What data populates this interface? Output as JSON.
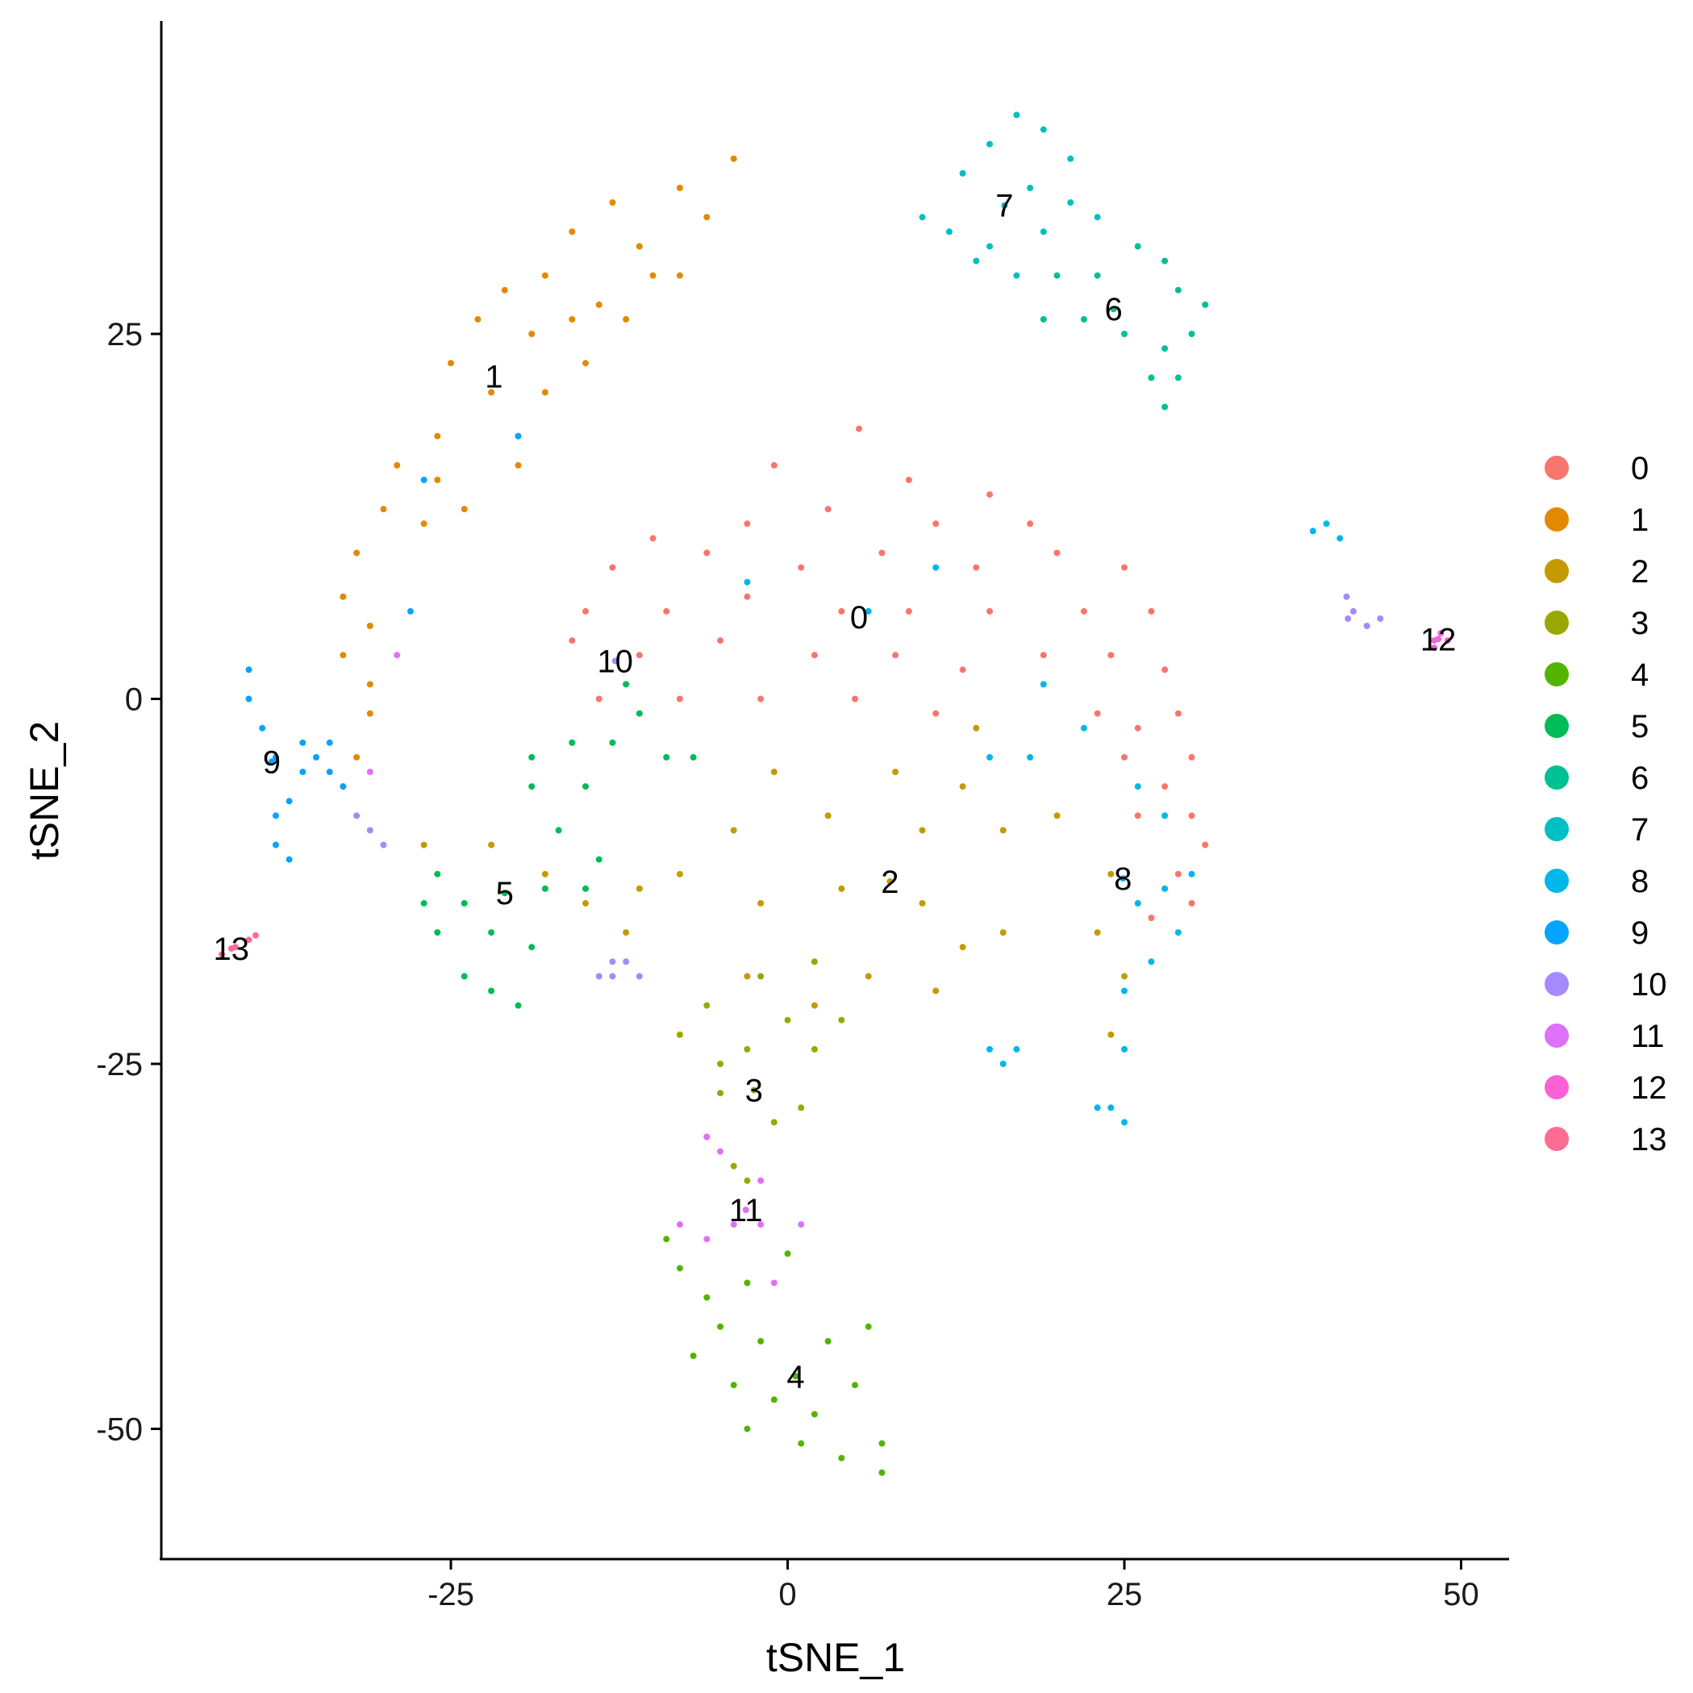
{
  "chart_data": {
    "type": "scatter",
    "title": "",
    "xlabel": "tSNE_1",
    "ylabel": "tSNE_2",
    "xlim": [
      -46,
      53
    ],
    "ylim": [
      -59,
      47
    ],
    "x_ticks": [
      -25,
      0,
      25,
      50
    ],
    "y_ticks": [
      25,
      0,
      -25,
      -50
    ],
    "x_tick_labels": [
      "-25",
      "0",
      "25",
      "50"
    ],
    "y_tick_labels": [
      "25",
      "0",
      "-25",
      "-50"
    ],
    "grid": false,
    "legend_position": "right",
    "series": [
      {
        "name": "0",
        "color": "#F8766D",
        "label_pos": [
          5.3,
          5.6
        ],
        "points": [
          [
            5.3,
            18.5
          ],
          [
            -1,
            16
          ],
          [
            9,
            15
          ],
          [
            15,
            14
          ],
          [
            -10,
            11
          ],
          [
            -3,
            12
          ],
          [
            3,
            13
          ],
          [
            11,
            12
          ],
          [
            18,
            12
          ],
          [
            -13,
            9
          ],
          [
            -6,
            10
          ],
          [
            1,
            9
          ],
          [
            7,
            10
          ],
          [
            14,
            9
          ],
          [
            20,
            10
          ],
          [
            25,
            9
          ],
          [
            -15,
            6
          ],
          [
            -9,
            6
          ],
          [
            -3,
            7
          ],
          [
            4,
            6
          ],
          [
            9,
            6
          ],
          [
            15,
            6
          ],
          [
            22,
            6
          ],
          [
            27,
            6
          ],
          [
            -16,
            4
          ],
          [
            -11,
            3
          ],
          [
            -5,
            4
          ],
          [
            2,
            3
          ],
          [
            8,
            3
          ],
          [
            13,
            2
          ],
          [
            19,
            3
          ],
          [
            24,
            3
          ],
          [
            28,
            2
          ],
          [
            -14,
            0
          ],
          [
            -8,
            0
          ],
          [
            -2,
            0
          ],
          [
            5,
            0
          ],
          [
            11,
            -1
          ],
          [
            23,
            -1
          ],
          [
            26,
            -2
          ],
          [
            29,
            -1
          ],
          [
            30,
            -4
          ],
          [
            28,
            -6
          ],
          [
            30,
            -8
          ],
          [
            31,
            -10
          ],
          [
            29,
            -12
          ],
          [
            26,
            -8
          ],
          [
            25,
            -4
          ],
          [
            30,
            -14
          ],
          [
            27,
            -15
          ]
        ]
      },
      {
        "name": "1",
        "color": "#E38900",
        "label_pos": [
          -21.8,
          22.1
        ],
        "points": [
          [
            -4,
            37
          ],
          [
            -8,
            35
          ],
          [
            -13,
            34
          ],
          [
            -16,
            32
          ],
          [
            -11,
            31
          ],
          [
            -6,
            33
          ],
          [
            -18,
            29
          ],
          [
            -14,
            27
          ],
          [
            -10,
            29
          ],
          [
            -21,
            28
          ],
          [
            -23,
            26
          ],
          [
            -19,
            25
          ],
          [
            -15,
            23
          ],
          [
            -25,
            23
          ],
          [
            -22,
            21
          ],
          [
            -18,
            21
          ],
          [
            -20,
            18
          ],
          [
            -26,
            18
          ],
          [
            -29,
            16
          ],
          [
            -26,
            15
          ],
          [
            -30,
            13
          ],
          [
            -27,
            12
          ],
          [
            -32,
            10
          ],
          [
            -33,
            7
          ],
          [
            -31,
            5
          ],
          [
            -33,
            3
          ],
          [
            -31,
            1
          ],
          [
            -31,
            -1
          ],
          [
            -32,
            -4
          ],
          [
            -33,
            -6
          ],
          [
            -12,
            26
          ],
          [
            -8,
            29
          ],
          [
            -16,
            26
          ],
          [
            -20,
            16
          ],
          [
            -24,
            13
          ]
        ]
      },
      {
        "name": "2",
        "color": "#C49A00",
        "label_pos": [
          7.6,
          -12.5
        ],
        "points": [
          [
            7.6,
            -12.5
          ],
          [
            3,
            -8
          ],
          [
            10,
            -9
          ],
          [
            13,
            -6
          ],
          [
            16,
            -9
          ],
          [
            20,
            -8
          ],
          [
            24,
            -12
          ],
          [
            23,
            -16
          ],
          [
            25,
            -19
          ],
          [
            24,
            -23
          ],
          [
            -1,
            -5
          ],
          [
            -4,
            -9
          ],
          [
            -8,
            -12
          ],
          [
            -11,
            -13
          ],
          [
            -2,
            -14
          ],
          [
            4,
            -13
          ],
          [
            10,
            -14
          ],
          [
            13,
            -17
          ],
          [
            16,
            -16
          ],
          [
            11,
            -20
          ],
          [
            -15,
            -14
          ],
          [
            -3,
            -19
          ],
          [
            2,
            -21
          ],
          [
            6,
            -19
          ],
          [
            14,
            -2
          ],
          [
            8,
            -5
          ],
          [
            -18,
            -12
          ],
          [
            -22,
            -10
          ],
          [
            -27,
            -10
          ],
          [
            -12,
            -16
          ]
        ]
      },
      {
        "name": "3",
        "color": "#99A800",
        "label_pos": [
          -2.5,
          -26.8
        ],
        "points": [
          [
            -2.5,
            -26.8
          ],
          [
            -6,
            -21
          ],
          [
            -3,
            -24
          ],
          [
            0,
            -22
          ],
          [
            2,
            -24
          ],
          [
            -5,
            -27
          ],
          [
            -1,
            -29
          ],
          [
            -6,
            -30
          ],
          [
            -4,
            -32
          ],
          [
            -3,
            -33
          ],
          [
            1,
            -28
          ],
          [
            -8,
            -23
          ],
          [
            -2,
            -19
          ],
          [
            2,
            -18
          ],
          [
            4,
            -22
          ],
          [
            -5,
            -25
          ]
        ]
      },
      {
        "name": "4",
        "color": "#53B400",
        "label_pos": [
          0.6,
          -46.4
        ],
        "points": [
          [
            0.6,
            -46.4
          ],
          [
            -8,
            -39
          ],
          [
            -6,
            -41
          ],
          [
            -3,
            -40
          ],
          [
            0,
            -38
          ],
          [
            -5,
            -43
          ],
          [
            -2,
            -44
          ],
          [
            3,
            -44
          ],
          [
            -4,
            -47
          ],
          [
            -1,
            -48
          ],
          [
            2,
            -49
          ],
          [
            5,
            -47
          ],
          [
            -3,
            -50
          ],
          [
            1,
            -51
          ],
          [
            4,
            -52
          ],
          [
            7,
            -53
          ],
          [
            -9,
            -37
          ],
          [
            -7,
            -45
          ],
          [
            6,
            -43
          ],
          [
            7,
            -51
          ]
        ]
      },
      {
        "name": "5",
        "color": "#00BC56",
        "label_pos": [
          -21,
          -13.3
        ],
        "points": [
          [
            -21,
            -13.3
          ],
          [
            -26,
            -12
          ],
          [
            -24,
            -14
          ],
          [
            -22,
            -16
          ],
          [
            -26,
            -16
          ],
          [
            -24,
            -19
          ],
          [
            -22,
            -20
          ],
          [
            -20,
            -21
          ],
          [
            -19,
            -17
          ],
          [
            -18,
            -13
          ],
          [
            -15,
            -13
          ],
          [
            -14,
            -11
          ],
          [
            -17,
            -9
          ],
          [
            -19,
            -6
          ],
          [
            -15,
            -6
          ],
          [
            -16,
            -3
          ],
          [
            -13,
            -3
          ],
          [
            -11,
            -1
          ],
          [
            -12,
            1
          ],
          [
            -19,
            -4
          ],
          [
            -9,
            -4
          ],
          [
            -7,
            -4
          ],
          [
            -27,
            -14
          ]
        ]
      },
      {
        "name": "6",
        "color": "#00C094",
        "label_pos": [
          24.2,
          26.7
        ],
        "points": [
          [
            24.2,
            26.7
          ],
          [
            20,
            29
          ],
          [
            23,
            29
          ],
          [
            26,
            31
          ],
          [
            28,
            30
          ],
          [
            29,
            28
          ],
          [
            31,
            27
          ],
          [
            30,
            25
          ],
          [
            28,
            24
          ],
          [
            27,
            22
          ],
          [
            29,
            22
          ],
          [
            28,
            20
          ],
          [
            25,
            25
          ],
          [
            22,
            26
          ],
          [
            19,
            26
          ]
        ]
      },
      {
        "name": "7",
        "color": "#00BFC4",
        "label_pos": [
          16.1,
          33.8
        ],
        "points": [
          [
            16.1,
            33.8
          ],
          [
            17,
            40
          ],
          [
            19,
            39
          ],
          [
            15,
            38
          ],
          [
            13,
            36
          ],
          [
            18,
            35
          ],
          [
            21,
            37
          ],
          [
            10,
            33
          ],
          [
            12,
            32
          ],
          [
            15,
            31
          ],
          [
            19,
            32
          ],
          [
            21,
            34
          ],
          [
            23,
            33
          ],
          [
            14,
            30
          ],
          [
            17,
            29
          ]
        ]
      },
      {
        "name": "8",
        "color": "#00B6EB",
        "label_pos": [
          24.9,
          -12.3
        ],
        "points": [
          [
            24.9,
            -12.3
          ],
          [
            26,
            -14
          ],
          [
            28,
            -13
          ],
          [
            29,
            -16
          ],
          [
            27,
            -18
          ],
          [
            25,
            -20
          ],
          [
            25,
            -24
          ],
          [
            24,
            -28
          ],
          [
            25,
            -29
          ],
          [
            23,
            -28
          ],
          [
            26,
            -6
          ],
          [
            28,
            -8
          ],
          [
            30,
            -12
          ],
          [
            18,
            -4
          ],
          [
            15,
            -4
          ],
          [
            19,
            1
          ],
          [
            22,
            -2
          ],
          [
            39,
            11.5
          ],
          [
            40,
            12
          ],
          [
            41,
            11
          ],
          [
            17,
            -24
          ],
          [
            16,
            -25
          ],
          [
            15,
            -24
          ],
          [
            6,
            6
          ],
          [
            11,
            9
          ],
          [
            -3,
            8
          ]
        ]
      },
      {
        "name": "9",
        "color": "#06A4FF",
        "label_pos": [
          -38.3,
          -4.3
        ],
        "points": [
          [
            -38.3,
            -4.3
          ],
          [
            -40,
            2
          ],
          [
            -40,
            0
          ],
          [
            -39,
            -2
          ],
          [
            -38,
            -4
          ],
          [
            -36,
            -5
          ],
          [
            -34,
            -5
          ],
          [
            -37,
            -7
          ],
          [
            -38,
            -8
          ],
          [
            -38,
            -10
          ],
          [
            -37,
            -11
          ],
          [
            -36,
            -3
          ],
          [
            -35,
            -4
          ],
          [
            -33,
            -6
          ],
          [
            -34,
            -3
          ],
          [
            -27,
            15
          ],
          [
            -28,
            6
          ],
          [
            -20,
            18
          ]
        ]
      },
      {
        "name": "10",
        "color": "#A58AFF",
        "label_pos": [
          -12.8,
          2.6
        ],
        "points": [
          [
            -12.8,
            2.6
          ],
          [
            -14,
            -19
          ],
          [
            -13,
            -19
          ],
          [
            -12,
            -18
          ],
          [
            -11,
            -19
          ],
          [
            -13,
            -18
          ],
          [
            41.5,
            7
          ],
          [
            42,
            6
          ],
          [
            41.6,
            5.5
          ],
          [
            43,
            5
          ],
          [
            44,
            5.5
          ],
          [
            -31,
            -9
          ],
          [
            -30,
            -10
          ],
          [
            -32,
            -8
          ]
        ]
      },
      {
        "name": "11",
        "color": "#DF70F8",
        "label_pos": [
          -3.1,
          -35
        ],
        "points": [
          [
            -3.1,
            -35
          ],
          [
            -8,
            -36
          ],
          [
            -6,
            -37
          ],
          [
            -4,
            -36
          ],
          [
            -2,
            -36
          ],
          [
            1,
            -36
          ],
          [
            -6,
            -30
          ],
          [
            -5,
            -31
          ],
          [
            -2,
            -33
          ],
          [
            -1,
            -40
          ],
          [
            -29,
            3
          ],
          [
            -31,
            -5
          ]
        ]
      },
      {
        "name": "12",
        "color": "#FB61D7",
        "label_pos": [
          48.3,
          4.1
        ],
        "points": [
          [
            48.3,
            4.1
          ],
          [
            48,
            3.5
          ],
          [
            48.5,
            4.5
          ],
          [
            48,
            4
          ],
          [
            49,
            4
          ]
        ]
      },
      {
        "name": "13",
        "color": "#FF6C91",
        "label_pos": [
          -41.3,
          -17.1
        ],
        "points": [
          [
            -41.3,
            -17.1
          ],
          [
            -42,
            -17.5
          ],
          [
            -41,
            -17
          ],
          [
            -40,
            -16.5
          ],
          [
            -39.5,
            -16.2
          ]
        ]
      }
    ]
  }
}
